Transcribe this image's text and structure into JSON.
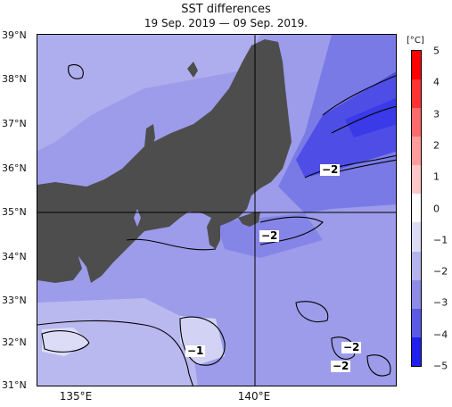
{
  "title": "SST differences",
  "period": "19 Sep. 2019 — 09 Sep. 2019.",
  "lat_labels": [
    "39°N",
    "38°N",
    "37°N",
    "36°N",
    "35°N",
    "34°N",
    "33°N",
    "32°N",
    "31°N"
  ],
  "lon_labels": [
    "135°E",
    "140°E"
  ],
  "colorbar": {
    "unit": "[°C]",
    "ticks": [
      "5",
      "4",
      "3",
      "2",
      "1",
      "0",
      "−1",
      "−2",
      "−3",
      "−4",
      "−5"
    ],
    "colors": [
      "#ff0000",
      "#ff3333",
      "#ff6a6a",
      "#ff9b9b",
      "#ffc8c8",
      "#ffffff",
      "#dcdcf4",
      "#b4b4ec",
      "#8c8ce6",
      "#5a5ae6",
      "#2020ee"
    ]
  },
  "contour_labels": [
    "−2",
    "−2",
    "−1",
    "−2",
    "−2"
  ],
  "colors": {
    "land": "#4d4d4d",
    "sea_light": "#c8c8f0",
    "sea_mid": "#9c9cea",
    "sea_dark": "#4e4ee6"
  }
}
